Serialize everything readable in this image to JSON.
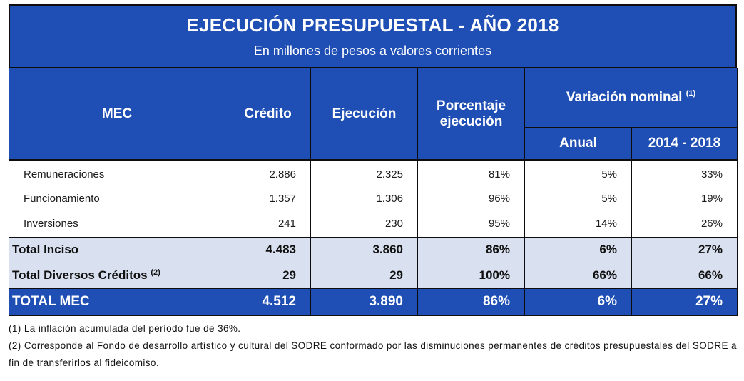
{
  "title": "EJECUCIÓN PRESUPUESTAL - AÑO 2018",
  "subtitle": "En millones de pesos a valores corrientes",
  "headers": {
    "mec": "MEC",
    "credito": "Crédito",
    "ejecucion": "Ejecución",
    "porcentaje_line1": "Porcentaje",
    "porcentaje_line2": "ejecución",
    "variacion": "Variación nominal",
    "variacion_note": "(1)",
    "anual": "Anual",
    "periodo": "2014 - 2018"
  },
  "rows": [
    {
      "label": "Remuneraciones",
      "credito": "2.886",
      "ejecucion": "2.325",
      "porcentaje": "81%",
      "anual": "5%",
      "periodo": "33%"
    },
    {
      "label": "Funcionamiento",
      "credito": "1.357",
      "ejecucion": "1.306",
      "porcentaje": "96%",
      "anual": "5%",
      "periodo": "19%"
    },
    {
      "label": "Inversiones",
      "credito": "241",
      "ejecucion": "230",
      "porcentaje": "95%",
      "anual": "14%",
      "periodo": "26%"
    }
  ],
  "total_inciso": {
    "label": "Total Inciso",
    "credito": "4.483",
    "ejecucion": "3.860",
    "porcentaje": "86%",
    "anual": "6%",
    "periodo": "27%"
  },
  "total_diversos": {
    "label": "Total Diversos Créditos",
    "note": "(2)",
    "credito": "29",
    "ejecucion": "29",
    "porcentaje": "100%",
    "anual": "66%",
    "periodo": "66%"
  },
  "total_mec": {
    "label": "TOTAL MEC",
    "credito": "4.512",
    "ejecucion": "3.890",
    "porcentaje": "86%",
    "anual": "6%",
    "periodo": "27%"
  },
  "notes": [
    "(1) La inflación acumulada del período fue de 36%.",
    "(2) Corresponde al Fondo de desarrollo artístico y cultural del SODRE conformado por las disminuciones permanentes de créditos presupuestales del SODRE a fin de transferirlos al fideicomiso."
  ],
  "colors": {
    "header_blue": "#1f4fb4",
    "subtotal_fill": "#d9e1f0"
  }
}
